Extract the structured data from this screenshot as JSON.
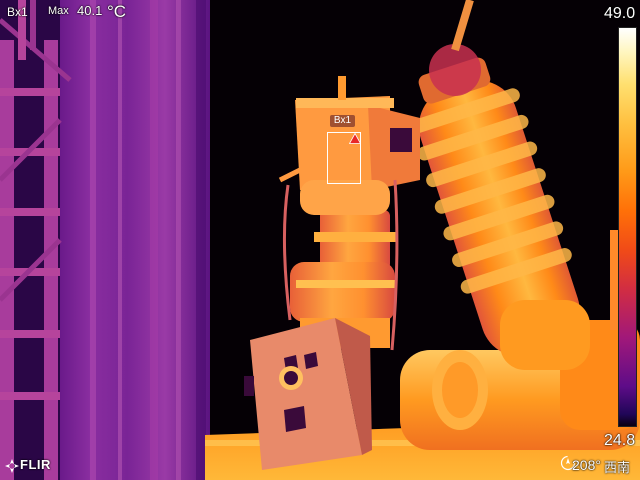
{
  "measurement": {
    "tool_label": "Bx1",
    "max_label": "Max",
    "max_value": "40.1",
    "unit": "°C"
  },
  "scale": {
    "top_value": "49.0",
    "bottom_value": "24.8"
  },
  "box_tool": {
    "tag": "Bx1"
  },
  "brand": {
    "text": "FLIR"
  },
  "compass": {
    "heading": "208°",
    "direction": "西南"
  },
  "icons": {
    "logo": "flir-logo-icon",
    "marker": "max-temp-marker-icon",
    "compass": "compass-icon"
  },
  "colors": {
    "hot": "#ffe47a",
    "warm": "#ff9a18",
    "mid": "#e0503a",
    "cool": "#9a2a9a",
    "cold": "#3a0a5e",
    "background": "#050005",
    "marker": "#e82828"
  }
}
